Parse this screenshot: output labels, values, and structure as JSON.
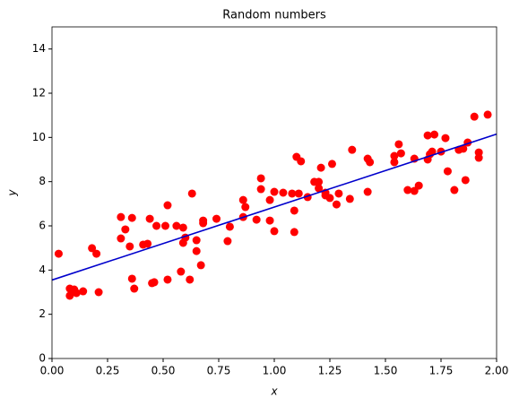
{
  "chart_data": {
    "type": "scatter",
    "title": "Random numbers",
    "x_label": "x",
    "y_label": "y",
    "xlim": [
      0,
      2
    ],
    "ylim": [
      0,
      15
    ],
    "xticks": [
      {
        "value": 0,
        "label": "0.00"
      },
      {
        "value": 0.25,
        "label": "0.25"
      },
      {
        "value": 0.5,
        "label": "0.50"
      },
      {
        "value": 0.75,
        "label": "0.75"
      },
      {
        "value": 1,
        "label": "1.00"
      },
      {
        "value": 1.25,
        "label": "1.25"
      },
      {
        "value": 1.5,
        "label": "1.50"
      },
      {
        "value": 1.75,
        "label": "1.75"
      },
      {
        "value": 2,
        "label": "2.00"
      }
    ],
    "yticks": [
      0,
      2,
      4,
      6,
      8,
      10,
      12,
      14
    ],
    "grid": false,
    "series": [
      {
        "type": "scatter",
        "color": "#ff0000",
        "x": [
          0.03,
          0.08,
          0.08,
          0.1,
          0.11,
          0.14,
          0.18,
          0.2,
          0.21,
          0.31,
          0.31,
          0.33,
          0.35,
          0.36,
          0.36,
          0.37,
          0.41,
          0.43,
          0.44,
          0.45,
          0.46,
          0.47,
          0.51,
          0.52,
          0.52,
          0.56,
          0.58,
          0.59,
          0.59,
          0.6,
          0.62,
          0.63,
          0.65,
          0.65,
          0.67,
          0.68,
          0.68,
          0.74,
          0.79,
          0.8,
          0.86,
          0.86,
          0.87,
          0.92,
          0.94,
          0.94,
          0.98,
          0.98,
          1.0,
          1.0,
          1.04,
          1.08,
          1.09,
          1.09,
          1.1,
          1.11,
          1.12,
          1.15,
          1.18,
          1.2,
          1.2,
          1.21,
          1.23,
          1.23,
          1.25,
          1.26,
          1.28,
          1.29,
          1.34,
          1.35,
          1.42,
          1.42,
          1.43,
          1.54,
          1.54,
          1.56,
          1.57,
          1.6,
          1.63,
          1.63,
          1.65,
          1.69,
          1.69,
          1.7,
          1.71,
          1.72,
          1.75,
          1.77,
          1.78,
          1.81,
          1.83,
          1.85,
          1.86,
          1.87,
          1.9,
          1.92,
          1.92,
          1.96
        ],
        "values": [
          4.74,
          3.16,
          2.84,
          3.12,
          2.96,
          3.04,
          4.99,
          4.74,
          3.0,
          5.43,
          6.4,
          5.84,
          5.07,
          6.36,
          3.61,
          3.16,
          5.15,
          5.19,
          6.32,
          3.41,
          3.45,
          6.0,
          6.0,
          6.93,
          3.57,
          6.0,
          3.93,
          5.23,
          5.92,
          5.47,
          3.57,
          7.46,
          5.35,
          4.86,
          4.22,
          6.12,
          6.24,
          6.32,
          5.31,
          5.96,
          7.17,
          6.4,
          6.85,
          6.28,
          7.66,
          8.15,
          6.24,
          7.17,
          5.76,
          7.54,
          7.5,
          7.46,
          5.72,
          6.69,
          9.12,
          7.46,
          8.92,
          7.3,
          7.99,
          7.7,
          7.99,
          8.63,
          7.5,
          7.38,
          7.26,
          8.8,
          6.97,
          7.46,
          7.22,
          9.44,
          7.54,
          9.04,
          8.88,
          9.16,
          8.88,
          9.69,
          9.28,
          7.62,
          9.04,
          7.58,
          7.82,
          10.09,
          9.0,
          9.24,
          9.36,
          10.13,
          9.36,
          9.97,
          8.47,
          7.62,
          9.44,
          9.49,
          8.07,
          9.77,
          10.94,
          9.32,
          9.08,
          11.03
        ]
      },
      {
        "type": "line",
        "color": "#0000cc",
        "x": [
          0,
          2
        ],
        "values": [
          3.55,
          10.15
        ]
      }
    ]
  }
}
